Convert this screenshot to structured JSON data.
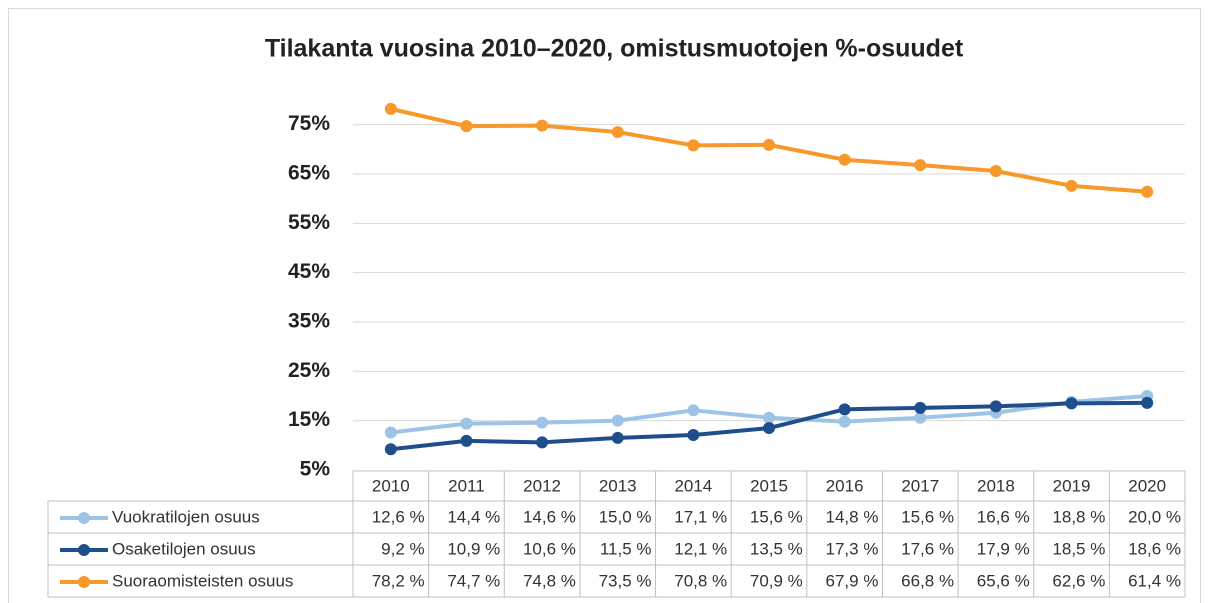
{
  "chart_data": {
    "type": "line",
    "title": "Tilakanta vuosina 2010–2020, omistusmuotojen %-osuudet",
    "categories": [
      "2010",
      "2011",
      "2012",
      "2013",
      "2014",
      "2015",
      "2016",
      "2017",
      "2018",
      "2019",
      "2020"
    ],
    "series": [
      {
        "name": "Vuokratilojen osuus",
        "color": "#9dc3e6",
        "values": [
          12.6,
          14.4,
          14.6,
          15.0,
          17.1,
          15.6,
          14.8,
          15.6,
          16.6,
          18.8,
          20.0
        ],
        "value_labels": [
          "12,6 %",
          "14,4 %",
          "14,6 %",
          "15,0 %",
          "17,1 %",
          "15,6 %",
          "14,8 %",
          "15,6 %",
          "16,6 %",
          "18,8 %",
          "20,0 %"
        ]
      },
      {
        "name": "Osaketilojen osuus",
        "color": "#1f4e8c",
        "values": [
          9.2,
          10.9,
          10.6,
          11.5,
          12.1,
          13.5,
          17.3,
          17.6,
          17.9,
          18.5,
          18.6
        ],
        "value_labels": [
          "9,2 %",
          "10,9 %",
          "10,6 %",
          "11,5 %",
          "12,1 %",
          "13,5 %",
          "17,3 %",
          "17,6 %",
          "17,9 %",
          "18,5 %",
          "18,6 %"
        ]
      },
      {
        "name": "Suoraomisteisten osuus",
        "color": "#f7982a",
        "values": [
          78.2,
          74.7,
          74.8,
          73.5,
          70.8,
          70.9,
          67.9,
          66.8,
          65.6,
          62.6,
          61.4
        ],
        "value_labels": [
          "78,2 %",
          "74,7 %",
          "74,8 %",
          "73,5 %",
          "70,8 %",
          "70,9 %",
          "67,9 %",
          "66,8 %",
          "65,6 %",
          "62,6 %",
          "61,4 %"
        ]
      }
    ],
    "ylim": [
      5,
      80
    ],
    "yticks": [
      {
        "value": 5,
        "label": "5%"
      },
      {
        "value": 15,
        "label": "15%"
      },
      {
        "value": 25,
        "label": "25%"
      },
      {
        "value": 35,
        "label": "35%"
      },
      {
        "value": 45,
        "label": "45%"
      },
      {
        "value": 55,
        "label": "55%"
      },
      {
        "value": 65,
        "label": "65%"
      },
      {
        "value": 75,
        "label": "75%"
      }
    ],
    "grid": true
  }
}
